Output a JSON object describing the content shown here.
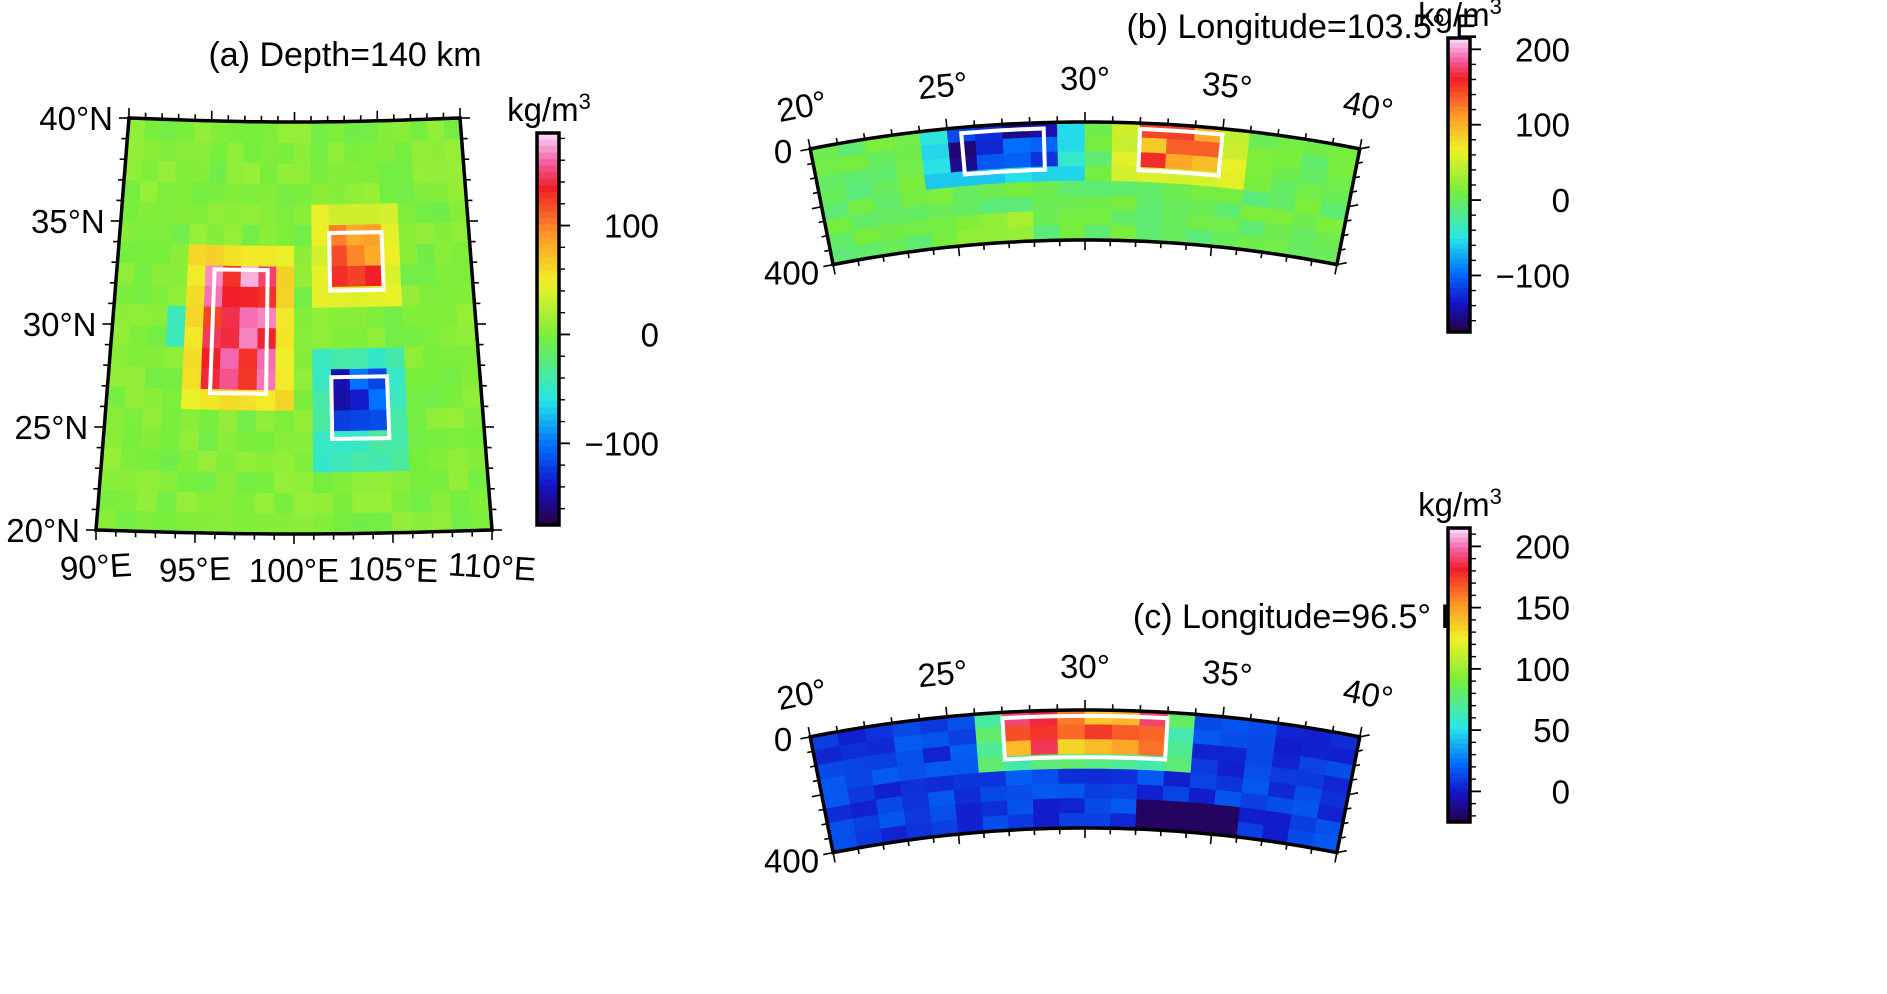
{
  "chart_data": [
    {
      "id": "a",
      "type": "heatmap",
      "title": "(a) Depth=140 km",
      "projection": "conic map",
      "x_ticks": [
        "90°E",
        "95°E",
        "100°E",
        "105°E",
        "110°E"
      ],
      "y_ticks": [
        "20°N",
        "25°N",
        "30°N",
        "35°N",
        "40°N"
      ],
      "x_range": [
        90,
        110
      ],
      "y_range": [
        20,
        40
      ],
      "boxes": [
        {
          "lon": [
            95.5,
            98.5
          ],
          "lat": [
            26.8,
            32.8
          ],
          "value": 150
        },
        {
          "lon": [
            102,
            105
          ],
          "lat": [
            31.8,
            34.6
          ],
          "value": 110
        },
        {
          "lon": [
            102,
            105
          ],
          "lat": [
            24.6,
            27.6
          ],
          "value": -130
        }
      ],
      "colorbar": {
        "unit": "kg/m",
        "unit_sup": "3",
        "range": [
          -175,
          185
        ],
        "ticks": [
          {
            "v": 100,
            "label": "100"
          },
          {
            "v": 0,
            "label": "0"
          },
          {
            "v": -100,
            "label": "−100"
          }
        ]
      }
    },
    {
      "id": "b",
      "type": "heatmap",
      "title": "(b) Longitude=103.5° E",
      "projection": "cross-section",
      "x_ticks": [
        "20°",
        "25°",
        "30°",
        "35°",
        "40°"
      ],
      "y_ticks": [
        "0",
        "400"
      ],
      "x_range": [
        20,
        40
      ],
      "depth_range": [
        0,
        400
      ],
      "boxes": [
        {
          "lat": [
            25.5,
            28.5
          ],
          "depth": [
            20,
            160
          ],
          "value": -130
        },
        {
          "lat": [
            32,
            35
          ],
          "depth": [
            20,
            160
          ],
          "value": 120
        }
      ],
      "colorbar": {
        "unit": "kg/m",
        "unit_sup": "3",
        "range": [
          -175,
          215
        ],
        "ticks": [
          {
            "v": 200,
            "label": "200"
          },
          {
            "v": 100,
            "label": "100"
          },
          {
            "v": 0,
            "label": "0"
          },
          {
            "v": -100,
            "label": "−100"
          }
        ]
      }
    },
    {
      "id": "c",
      "type": "heatmap",
      "title": "(c) Longitude=96.5° E",
      "projection": "cross-section",
      "x_ticks": [
        "20°",
        "25°",
        "30°",
        "35°",
        "40°"
      ],
      "y_ticks": [
        "0",
        "400"
      ],
      "x_range": [
        20,
        40
      ],
      "depth_range": [
        0,
        400
      ],
      "boxes": [
        {
          "lat": [
            27,
            33
          ],
          "depth": [
            20,
            160
          ],
          "value": 160
        }
      ],
      "colorbar": {
        "unit": "kg/m",
        "unit_sup": "3",
        "range": [
          -25,
          215
        ],
        "ticks": [
          {
            "v": 200,
            "label": "200"
          },
          {
            "v": 150,
            "label": "150"
          },
          {
            "v": 100,
            "label": "100"
          },
          {
            "v": 50,
            "label": "50"
          },
          {
            "v": 0,
            "label": "0"
          }
        ]
      }
    }
  ]
}
